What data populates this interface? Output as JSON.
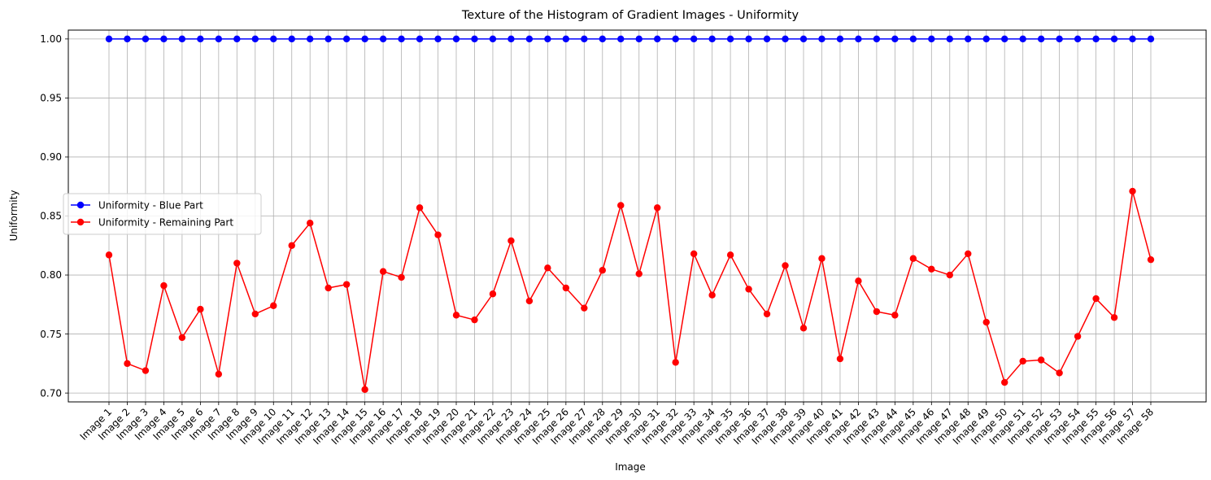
{
  "chart_data": {
    "type": "line",
    "title": "Texture of the Histogram of Gradient Images - Uniformity",
    "xlabel": "Image",
    "ylabel": "Uniformity",
    "categories": [
      "Image 1",
      "Image 2",
      "Image 3",
      "Image 4",
      "Image 5",
      "Image 6",
      "Image 7",
      "Image 8",
      "Image 9",
      "Image 10",
      "Image 11",
      "Image 12",
      "Image 13",
      "Image 14",
      "Image 15",
      "Image 16",
      "Image 17",
      "Image 18",
      "Image 19",
      "Image 20",
      "Image 21",
      "Image 22",
      "Image 23",
      "Image 24",
      "Image 25",
      "Image 26",
      "Image 27",
      "Image 28",
      "Image 29",
      "Image 30",
      "Image 31",
      "Image 32",
      "Image 33",
      "Image 34",
      "Image 35",
      "Image 36",
      "Image 37",
      "Image 38",
      "Image 39",
      "Image 40",
      "Image 41",
      "Image 42",
      "Image 43",
      "Image 44",
      "Image 45",
      "Image 46",
      "Image 47",
      "Image 48",
      "Image 49",
      "Image 50",
      "Image 51",
      "Image 52",
      "Image 53",
      "Image 54",
      "Image 55",
      "Image 56",
      "Image 57",
      "Image 58"
    ],
    "ylim": [
      0.6925,
      1.0075
    ],
    "yticks": [
      "0.70",
      "0.75",
      "0.80",
      "0.85",
      "0.90",
      "0.95",
      "1.00"
    ],
    "grid": true,
    "legend_position": "center-left",
    "series": [
      {
        "name": "Uniformity - Blue Part",
        "color": "#0000ff",
        "marker": "circle",
        "values": [
          1.0,
          1.0,
          1.0,
          1.0,
          1.0,
          1.0,
          1.0,
          1.0,
          1.0,
          1.0,
          1.0,
          1.0,
          1.0,
          1.0,
          1.0,
          1.0,
          1.0,
          1.0,
          1.0,
          1.0,
          1.0,
          1.0,
          1.0,
          1.0,
          1.0,
          1.0,
          1.0,
          1.0,
          1.0,
          1.0,
          1.0,
          1.0,
          1.0,
          1.0,
          1.0,
          1.0,
          1.0,
          1.0,
          1.0,
          1.0,
          1.0,
          1.0,
          1.0,
          1.0,
          1.0,
          1.0,
          1.0,
          1.0,
          1.0,
          1.0,
          1.0,
          1.0,
          1.0,
          1.0,
          1.0,
          1.0,
          1.0,
          1.0
        ]
      },
      {
        "name": "Uniformity - Remaining Part",
        "color": "#ff0000",
        "marker": "circle",
        "values": [
          0.817,
          0.725,
          0.719,
          0.791,
          0.747,
          0.771,
          0.716,
          0.81,
          0.767,
          0.774,
          0.825,
          0.844,
          0.789,
          0.792,
          0.703,
          0.803,
          0.798,
          0.857,
          0.834,
          0.766,
          0.762,
          0.784,
          0.829,
          0.778,
          0.806,
          0.789,
          0.772,
          0.804,
          0.859,
          0.801,
          0.857,
          0.726,
          0.818,
          0.783,
          0.817,
          0.788,
          0.767,
          0.808,
          0.755,
          0.814,
          0.729,
          0.795,
          0.769,
          0.766,
          0.814,
          0.805,
          0.8,
          0.818,
          0.76,
          0.709,
          0.727,
          0.728,
          0.717,
          0.748,
          0.78,
          0.764,
          0.871,
          0.813
        ]
      }
    ]
  }
}
